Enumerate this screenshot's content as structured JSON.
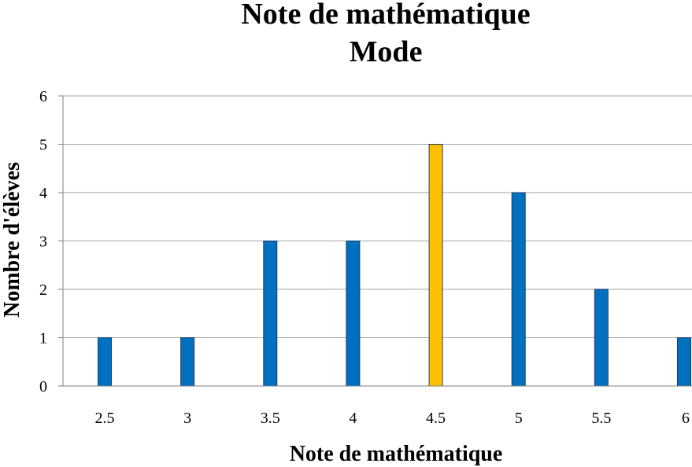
{
  "chart_data": {
    "type": "bar",
    "title": [
      "Note de mathématique",
      "Mode"
    ],
    "xlabel": "Note de mathématique",
    "ylabel": "Nombre d'élèves",
    "categories": [
      "2.5",
      "3",
      "3.5",
      "4",
      "4.5",
      "5",
      "5.5",
      "6"
    ],
    "values": [
      1,
      1,
      3,
      3,
      5,
      4,
      2,
      1
    ],
    "highlight_index": 4,
    "ylim": [
      0,
      6
    ],
    "yticks": [
      0,
      1,
      2,
      3,
      4,
      5,
      6
    ],
    "grid": true,
    "legend": "none",
    "colors": {
      "bar": "#0070c0",
      "highlight": "#ffc000"
    }
  }
}
